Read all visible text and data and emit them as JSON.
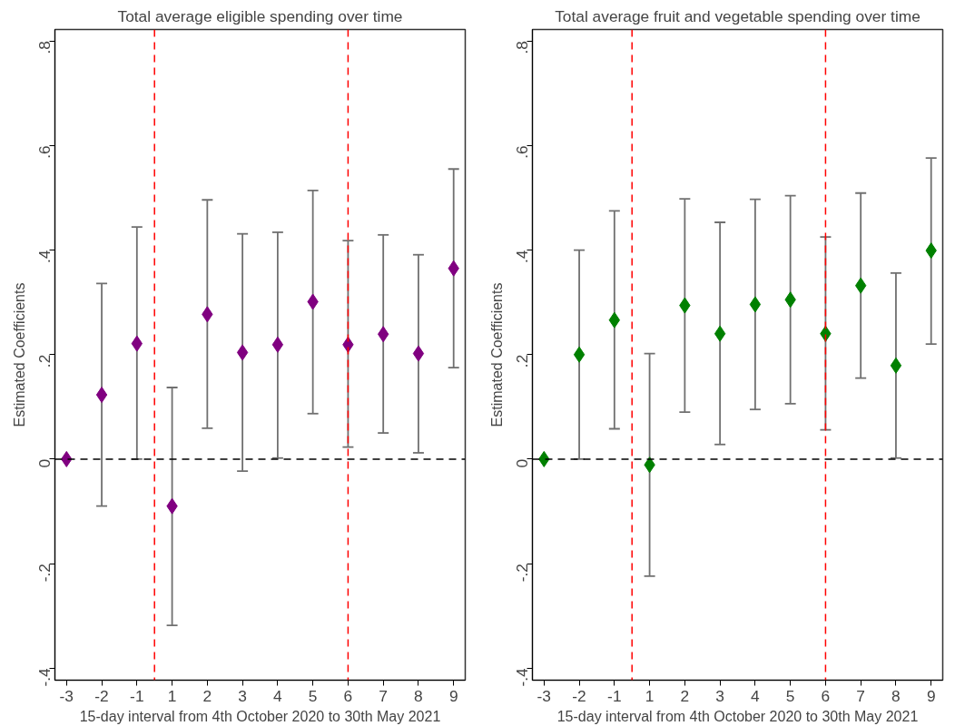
{
  "chart_data": [
    {
      "type": "scatter",
      "title": "Total average eligible spending over time",
      "xlabel": "15-day interval from 4th October 2020 to 30th May 2021",
      "ylabel": "Estimated Coefficients",
      "categories": [
        "-3",
        "-2",
        "-1",
        "1",
        "2",
        "3",
        "4",
        "5",
        "6",
        "7",
        "8",
        "9"
      ],
      "series": [
        {
          "color": "#800080",
          "values": [
            0,
            0.123,
            0.221,
            -0.09,
            0.277,
            0.204,
            0.219,
            0.301,
            0.219,
            0.239,
            0.202,
            0.365
          ],
          "errors": [
            null,
            [
              -0.09,
              0.336
            ],
            [
              0,
              0.444
            ],
            [
              -0.318,
              0.137
            ],
            [
              0.059,
              0.496
            ],
            [
              -0.023,
              0.431
            ],
            [
              0.002,
              0.434
            ],
            [
              0.087,
              0.514
            ],
            [
              0.023,
              0.418
            ],
            [
              0.05,
              0.429
            ],
            [
              0.012,
              0.391
            ],
            [
              0.175,
              0.555
            ]
          ]
        }
      ],
      "ylim": [
        -0.423,
        0.822
      ],
      "yticks": [
        {
          "value": -0.4,
          "label": "-.4"
        },
        {
          "value": -0.2,
          "label": "-.2"
        },
        0,
        {
          "value": 0.2,
          "label": ".2"
        },
        {
          "value": 0.4,
          "label": ".4"
        },
        {
          "value": 0.6,
          "label": ".6"
        },
        {
          "value": 0.8,
          "label": ".8"
        }
      ],
      "marker": "diamond",
      "grid": false,
      "ref_lines": [
        {
          "axis": "x",
          "value": "6",
          "color": "#ff0000",
          "line_style": "dashed"
        },
        {
          "axis": "y",
          "value": 0,
          "color": "#000000",
          "line_style": "dashed"
        }
      ]
    },
    {
      "type": "scatter",
      "title": "Total average fruit and vegetable spending over time",
      "xlabel": "15-day interval from 4th October 2020 to 30th May 2021",
      "ylabel": "Estimated Coefficients",
      "categories": [
        "-3",
        "-2",
        "-1",
        "1",
        "2",
        "3",
        "4",
        "5",
        "6",
        "7",
        "8",
        "9"
      ],
      "series": [
        {
          "color": "#008000",
          "values": [
            0,
            0.2,
            0.266,
            -0.011,
            0.294,
            0.24,
            0.296,
            0.305,
            0.24,
            0.332,
            0.179,
            0.399
          ],
          "errors": [
            null,
            [
              0,
              0.4
            ],
            [
              0.058,
              0.475
            ],
            [
              -0.224,
              0.202
            ],
            [
              0.09,
              0.498
            ],
            [
              0.028,
              0.453
            ],
            [
              0.095,
              0.497
            ],
            [
              0.106,
              0.504
            ],
            [
              0.056,
              0.425
            ],
            [
              0.155,
              0.509
            ],
            [
              0.002,
              0.356
            ],
            [
              0.22,
              0.576
            ]
          ]
        }
      ],
      "ylim": [
        -0.423,
        0.822
      ],
      "yticks": [
        {
          "value": -0.4,
          "label": "-.4"
        },
        {
          "value": -0.2,
          "label": "-.2"
        },
        0,
        {
          "value": 0.2,
          "label": ".2"
        },
        {
          "value": 0.4,
          "label": ".4"
        },
        {
          "value": 0.6,
          "label": ".6"
        },
        {
          "value": 0.8,
          "label": ".8"
        }
      ],
      "marker": "diamond",
      "grid": false,
      "ref_lines": [
        {
          "axis": "x",
          "value": "6",
          "color": "#ff0000",
          "line_style": "dashed"
        },
        {
          "axis": "y",
          "value": 0,
          "color": "#000000",
          "line_style": "dashed"
        }
      ]
    }
  ]
}
